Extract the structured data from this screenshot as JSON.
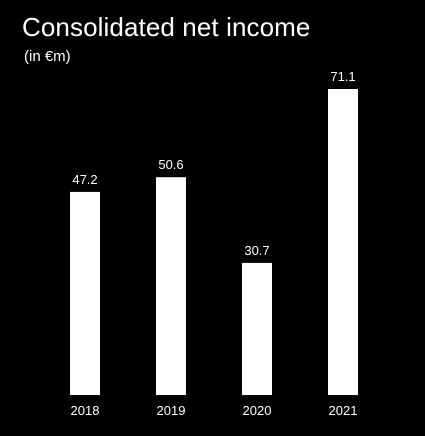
{
  "chart_data": {
    "type": "bar",
    "title": "Consolidated net income",
    "subtitle": "(in €m)",
    "categories": [
      "2018",
      "2019",
      "2020",
      "2021"
    ],
    "values": [
      47.2,
      50.6,
      30.7,
      71.1
    ],
    "value_labels": [
      "47.2",
      "50.6",
      "30.7",
      "71.1"
    ],
    "xlabel": "",
    "ylabel": "",
    "ylim": [
      0,
      71.1
    ],
    "grid": false,
    "bar_color": "#ffffff",
    "background_color": "#000000"
  }
}
